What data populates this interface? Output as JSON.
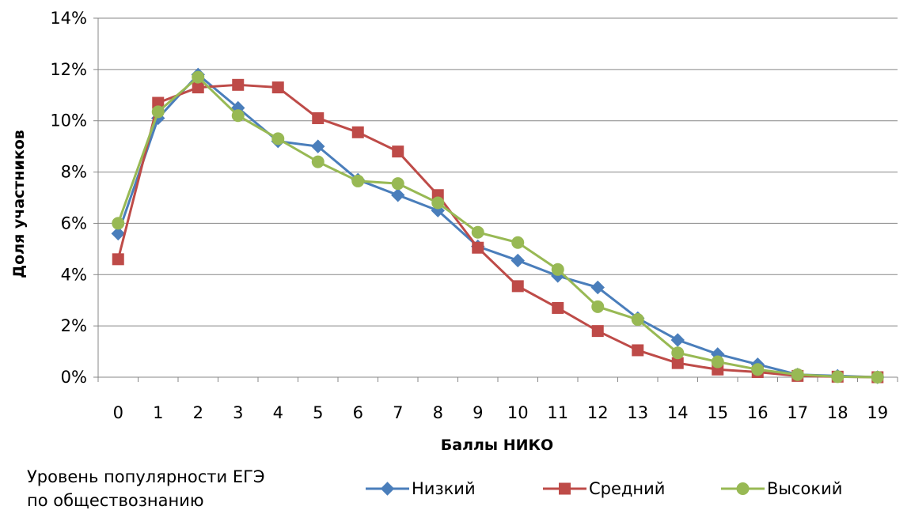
{
  "chart_data": {
    "type": "line",
    "xlabel": "Баллы НИКО",
    "ylabel": "Доля участников",
    "x": [
      0,
      1,
      2,
      3,
      4,
      5,
      6,
      7,
      8,
      9,
      10,
      11,
      12,
      13,
      14,
      15,
      16,
      17,
      18,
      19
    ],
    "xlim": [
      0,
      19
    ],
    "ylim": [
      0,
      14
    ],
    "y_ticks": [
      0,
      2,
      4,
      6,
      8,
      10,
      12,
      14
    ],
    "y_unit": "%",
    "grid": true,
    "legend_title": "Уровень популярности ЕГЭ по обществознанию",
    "legend_title_lines": [
      "Уровень популярности ЕГЭ",
      "по обществознанию"
    ],
    "legend_position": "bottom",
    "series": [
      {
        "name": "Низкий",
        "color": "#4a7ebb",
        "marker": "diamond",
        "values": [
          5.6,
          10.1,
          11.8,
          10.5,
          9.2,
          9.0,
          7.7,
          7.1,
          6.5,
          5.1,
          4.55,
          3.95,
          3.5,
          2.3,
          1.45,
          0.9,
          0.5,
          0.1,
          0.05,
          0.0
        ]
      },
      {
        "name": "Средний",
        "color": "#be4b48",
        "marker": "square",
        "values": [
          4.6,
          10.7,
          11.3,
          11.4,
          11.3,
          10.1,
          9.55,
          8.8,
          7.1,
          5.05,
          3.55,
          2.7,
          1.8,
          1.05,
          0.55,
          0.3,
          0.2,
          0.05,
          0.02,
          0.0
        ]
      },
      {
        "name": "Высокий",
        "color": "#98b954",
        "marker": "circle",
        "values": [
          6.0,
          10.35,
          11.7,
          10.2,
          9.3,
          8.4,
          7.65,
          7.55,
          6.8,
          5.65,
          5.25,
          4.2,
          2.75,
          2.25,
          0.95,
          0.6,
          0.3,
          0.1,
          0.02,
          0.0
        ]
      }
    ]
  }
}
